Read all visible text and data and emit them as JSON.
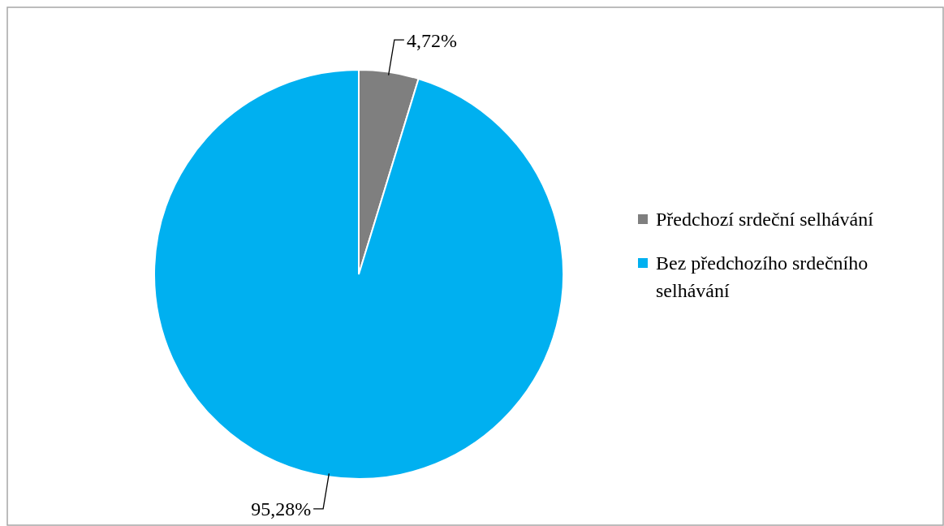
{
  "chart_data": {
    "type": "pie",
    "categories": [
      "Předchozí srdeční selhávání",
      "Bez předchozího srdečního selhávání"
    ],
    "values": [
      4.72,
      95.28
    ],
    "colors": [
      "#7f7f7f",
      "#00b0f0"
    ],
    "value_labels": [
      "4,72%",
      "95,28%"
    ],
    "legend": "right"
  }
}
